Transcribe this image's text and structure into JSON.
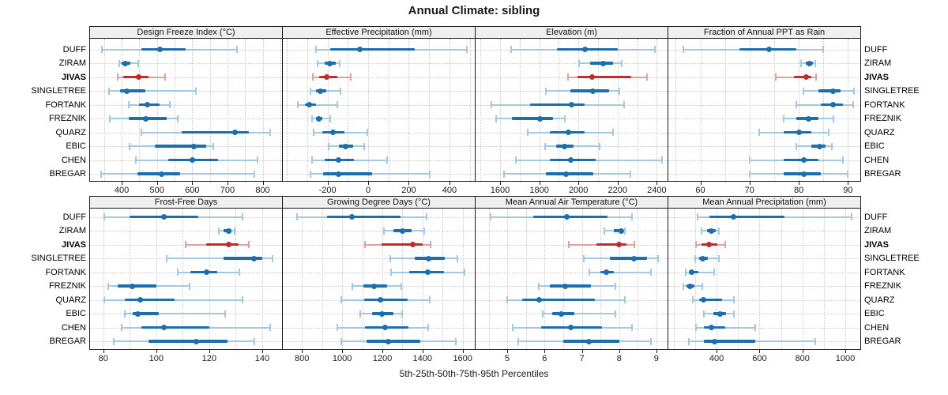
{
  "title": "Annual Climate: sibling",
  "caption": "5th-25th-50th-75th-95th Percentiles",
  "categories": [
    "DUFF",
    "ZIRAM",
    "JIVAS",
    "SINGLETREE",
    "FORTANK",
    "FREZNIK",
    "QUARZ",
    "EBIC",
    "CHEN",
    "BREGAR"
  ],
  "highlight": "JIVAS",
  "colors": {
    "normal": "#1b6fae",
    "normal_light": "#a5c8e1",
    "highlight": "#bf2c2c",
    "highlight_light": "#dfa2a2",
    "strip_bg": "#efefef",
    "grid": "#c9c9c9",
    "border": "#1a1a1a"
  },
  "chart_data": {
    "type": "interval-dotplot",
    "layout": "2 rows x 4 columns, shared category axis",
    "percentile_levels": [
      5,
      25,
      50,
      75,
      95
    ],
    "legend_position": "none",
    "grid": "dotted",
    "panels": [
      {
        "title": "Design Freeze Index (°C)",
        "row": 0,
        "col": 0,
        "xlim": [
          310,
          855
        ],
        "ticks": [
          400,
          500,
          600,
          700,
          800
        ],
        "grid_step": 50,
        "values": [
          [
            344,
            456,
            508,
            582,
            727
          ],
          [
            393,
            400,
            410,
            424,
            446
          ],
          [
            388,
            404,
            448,
            477,
            524
          ],
          [
            363,
            396,
            415,
            468,
            610
          ],
          [
            420,
            450,
            472,
            508,
            536
          ],
          [
            365,
            420,
            468,
            528,
            560
          ],
          [
            455,
            570,
            722,
            760,
            822
          ],
          [
            423,
            495,
            605,
            640,
            660
          ],
          [
            440,
            533,
            600,
            674,
            785
          ],
          [
            341,
            444,
            513,
            566,
            776
          ]
        ]
      },
      {
        "title": "Effective Precipitation (mm)",
        "row": 0,
        "col": 1,
        "xlim": [
          -420,
          525
        ],
        "ticks": [
          -200,
          0,
          200,
          400
        ],
        "grid_step": 100,
        "values": [
          [
            -258,
            -185,
            -40,
            230,
            485
          ],
          [
            -250,
            -215,
            -188,
            -160,
            -140
          ],
          [
            -272,
            -240,
            -205,
            -150,
            -85
          ],
          [
            -282,
            -255,
            -235,
            -205,
            -135
          ],
          [
            -345,
            -310,
            -288,
            -255,
            -150
          ],
          [
            -275,
            -258,
            -245,
            -225,
            -185
          ],
          [
            -268,
            -225,
            -175,
            -115,
            -5
          ],
          [
            -195,
            -145,
            -112,
            -75,
            -20
          ],
          [
            -278,
            -215,
            -145,
            -70,
            95
          ],
          [
            -285,
            -220,
            -145,
            20,
            305
          ]
        ]
      },
      {
        "title": "Elevation (m)",
        "row": 0,
        "col": 2,
        "xlim": [
          1475,
          2455
        ],
        "ticks": [
          1600,
          1800,
          2000,
          2200,
          2400
        ],
        "grid_step": 100,
        "values": [
          [
            1655,
            1890,
            2035,
            2200,
            2390
          ],
          [
            2005,
            2060,
            2125,
            2175,
            2220
          ],
          [
            1945,
            1995,
            2070,
            2270,
            2350
          ],
          [
            1835,
            1960,
            2075,
            2155,
            2210
          ],
          [
            1555,
            1755,
            1965,
            2030,
            2235
          ],
          [
            1580,
            1660,
            1805,
            1870,
            1930
          ],
          [
            1740,
            1855,
            1950,
            2030,
            2175
          ],
          [
            1830,
            1885,
            1930,
            1975,
            2110
          ],
          [
            1680,
            1855,
            1960,
            2090,
            2425
          ],
          [
            1620,
            1835,
            1935,
            2075,
            2265
          ]
        ]
      },
      {
        "title": "Fraction of Annual PPT as Rain",
        "row": 0,
        "col": 3,
        "xlim": [
          53.5,
          92.5
        ],
        "ticks": [
          60,
          70,
          80,
          90
        ],
        "grid_step": 5,
        "values": [
          [
            56.5,
            68,
            74,
            79.5,
            85
          ],
          [
            80.5,
            81.5,
            82.2,
            82.8,
            83.3
          ],
          [
            75.3,
            79,
            81.5,
            82.5,
            83.5
          ],
          [
            81,
            84,
            87,
            88.5,
            91.2
          ],
          [
            79.5,
            84.5,
            87,
            89,
            91
          ],
          [
            77,
            79.5,
            82,
            84,
            87
          ],
          [
            72,
            77,
            80,
            82.5,
            86
          ],
          [
            79.5,
            82.5,
            84.2,
            85.5,
            86.7
          ],
          [
            70,
            77,
            81,
            84,
            89
          ],
          [
            70,
            77,
            81,
            84.5,
            90
          ]
        ]
      },
      {
        "title": "Frost-Free Days",
        "row": 1,
        "col": 0,
        "xlim": [
          75,
          147.5
        ],
        "ticks": [
          80,
          100,
          120,
          140
        ],
        "grid_step": 10,
        "values": [
          [
            80.5,
            90,
            103,
            116,
            132.5
          ],
          [
            123.5,
            125.5,
            127.5,
            128.5,
            129.5
          ],
          [
            111,
            119,
            127.5,
            131,
            135
          ],
          [
            104,
            125.5,
            137,
            140,
            144
          ],
          [
            108,
            113,
            119,
            123,
            131.5
          ],
          [
            82,
            85.5,
            91,
            100,
            112.5
          ],
          [
            80.5,
            88,
            94,
            107,
            132.5
          ],
          [
            88,
            91,
            93,
            101,
            126
          ],
          [
            87,
            94.5,
            103,
            120,
            143
          ],
          [
            84,
            97,
            115,
            127,
            137
          ]
        ]
      },
      {
        "title": "Growing Degree Days (°C)",
        "row": 1,
        "col": 1,
        "xlim": [
          705,
          1660
        ],
        "ticks": [
          800,
          1000,
          1200,
          1400,
          1600
        ],
        "grid_step": 100,
        "values": [
          [
            775,
            925,
            1050,
            1290,
            1420
          ],
          [
            1210,
            1255,
            1300,
            1345,
            1410
          ],
          [
            1115,
            1195,
            1350,
            1400,
            1440
          ],
          [
            1240,
            1360,
            1430,
            1510,
            1575
          ],
          [
            1245,
            1335,
            1425,
            1505,
            1610
          ],
          [
            1050,
            1105,
            1160,
            1225,
            1295
          ],
          [
            995,
            1110,
            1190,
            1325,
            1435
          ],
          [
            1090,
            1150,
            1200,
            1255,
            1300
          ],
          [
            975,
            1115,
            1215,
            1330,
            1430
          ],
          [
            995,
            1120,
            1230,
            1390,
            1565
          ]
        ]
      },
      {
        "title": "Mean Annual Air Temperature (°C)",
        "row": 1,
        "col": 2,
        "xlim": [
          4.15,
          9.3
        ],
        "ticks": [
          5,
          6,
          7,
          8,
          9
        ],
        "grid_step": 0.5,
        "values": [
          [
            4.55,
            5.7,
            6.6,
            7.7,
            8.35
          ],
          [
            7.6,
            7.85,
            8.05,
            8.1,
            8.15
          ],
          [
            6.65,
            7.4,
            8.0,
            8.2,
            8.4
          ],
          [
            7.05,
            7.75,
            8.4,
            8.75,
            9.05
          ],
          [
            7.2,
            7.5,
            7.65,
            7.85,
            8.85
          ],
          [
            5.85,
            6.15,
            6.55,
            7.25,
            7.9
          ],
          [
            5.0,
            5.4,
            5.85,
            7.35,
            8.15
          ],
          [
            5.95,
            6.2,
            6.45,
            6.8,
            7.9
          ],
          [
            5.15,
            5.9,
            6.7,
            7.55,
            8.35
          ],
          [
            5.3,
            6.5,
            7.2,
            8.0,
            8.85
          ]
        ]
      },
      {
        "title": "Mean Annual Precipitation (mm)",
        "row": 1,
        "col": 3,
        "xlim": [
          175,
          1070
        ],
        "ticks": [
          400,
          600,
          800,
          1000
        ],
        "grid_step": 100,
        "values": [
          [
            310,
            365,
            480,
            715,
            1030
          ],
          [
            330,
            355,
            375,
            395,
            410
          ],
          [
            305,
            330,
            365,
            405,
            440
          ],
          [
            300,
            320,
            335,
            360,
            410
          ],
          [
            255,
            270,
            285,
            315,
            390
          ],
          [
            245,
            260,
            275,
            295,
            335
          ],
          [
            290,
            320,
            340,
            425,
            480
          ],
          [
            340,
            385,
            415,
            445,
            480
          ],
          [
            305,
            340,
            375,
            440,
            580
          ],
          [
            270,
            340,
            390,
            580,
            860
          ]
        ]
      }
    ]
  }
}
